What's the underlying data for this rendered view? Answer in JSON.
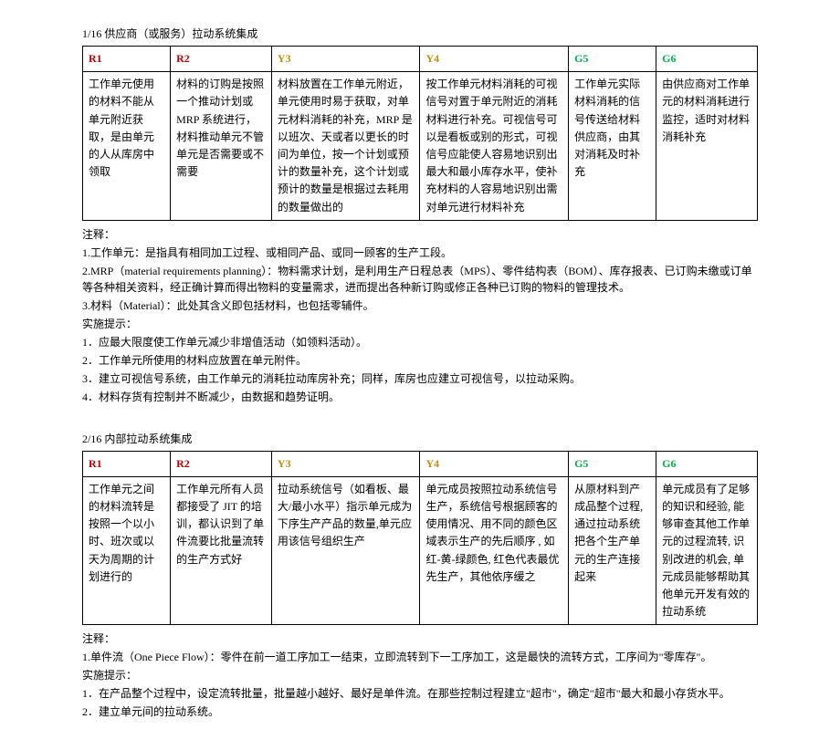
{
  "section1": {
    "title": "1/16 供应商（或服务）拉动系统集成",
    "headers": {
      "h1": "R1",
      "h2": "R2",
      "h3": "Y3",
      "h4": "Y4",
      "h5": "G5",
      "h6": "G6"
    },
    "row": {
      "c1": "工作单元使用的材料不能从单元附近获取，是由单元的人从库房中领取",
      "c2": "材料的订购是按照一个推动计划或 MRP 系统进行，材料推动单元不管单元是否需要或不需要",
      "c3": "材料放置在工作单元附近，单元使用时易于获取，对单元材料消耗的补充，MRP 是以班次、天或者以更长的时间为单位，按一个计划或预计的数量补充，这个计划或预计的数量是根据过去耗用的数量做出的",
      "c4": "按工作单元材料消耗的可视信号对置于单元附近的消耗材料进行补充。可视信号可以是看板或别的形式，可视信号应能使人容易地识别出最大和最小库存水平，使补充材料的人容易地识别出需对单元进行材料补充",
      "c5": "工作单元实际材料消耗的信号传送给材料供应商，由其对消耗及时补充",
      "c6": "由供应商对工作单元的材料消耗进行监控，适时对材料消耗补充"
    },
    "notes_label": "注释：",
    "note1": "1.工作单元：是指具有相同加工过程、或相同产品、或同一顾客的生产工段。",
    "note2": "2.MRP（material requirements planning）：物料需求计划，是利用生产日程总表（MPS）、零件结构表（BOM）、库存报表、已订购未缴或订单等各种相关资料，经正确计算而得出物料的变量需求，进而提出各种新订购或修正各种已订购的物料的管理技术。",
    "note3": "3.材料（Material）：此处其含义即包括材料，也包括零辅件。",
    "tips_label": "实施提示：",
    "tip1": "1．应最大限度使工作单元减少非增值活动（如领料活动）。",
    "tip2": "2．工作单元所使用的材料应放置在单元附件。",
    "tip3": "3．建立可视信号系统，由工作单元的消耗拉动库房补充；同样，库房也应建立可视信号，以拉动采购。",
    "tip4": "4．材料存货有控制并不断减少，由数据和趋势证明。"
  },
  "section2": {
    "title": "2/16 内部拉动系统集成",
    "headers": {
      "h1": "R1",
      "h2": "R2",
      "h3": "Y3",
      "h4": "Y4",
      "h5": "G5",
      "h6": "G6"
    },
    "row": {
      "c1": "工作单元之间的材料流转是按照一个以小时、班次或以天为周期的计划进行的",
      "c2": "工作单元所有人员都接受了 JIT 的培训，都认识到了单件流要比批量流转的生产方式好",
      "c3": "拉动系统信号（如看板、最大/最小水平）指示单元成为下序生产产品的数量,单元应用该信号组织生产",
      "c4": "单元成员按照拉动系统信号生产，系统信号根据顾客的使用情况、用不同的颜色区域表示生产的先后顺序 , 如红-黄-绿颜色, 红色代表最优先生产，其他依序缓之",
      "c5": "从原材料到产成品整个过程,通过拉动系统把各个生产单元的生产连接起来",
      "c6": "单元成员有了足够的知识和经验, 能够审查其他工作单元的过程流转, 识别改进的机会, 单元成员能够帮助其他单元开发有效的拉动系统"
    },
    "notes_label": "注释：",
    "note1": "1.单件流（One Piece Flow）：零件在前一道工序加工一结束，立即流转到下一工序加工，这是最快的流转方式，工序间为\"零库存\"。",
    "tips_label": "实施提示：",
    "tip1": "1．在产品整个过程中，设定流转批量，批量越小越好、最好是单件流。在那些控制过程建立\"超市\"，确定\"超市\"最大和最小存货水平。",
    "tip2": "2．建立单元间的拉动系统。"
  }
}
